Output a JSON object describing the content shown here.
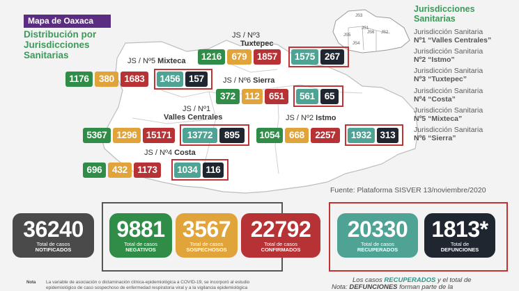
{
  "header": {
    "badge": "Mapa de Oaxaca",
    "subtitle_line1": "Distribución por",
    "subtitle_line2": "Jurisdicciones",
    "subtitle_line3": "Sanitarias"
  },
  "legend": {
    "title_line1": "Jurisdicciones",
    "title_line2": "Sanitarias",
    "inset_labels": [
      "JS3",
      "JS1",
      "JS6",
      "JS2",
      "JS5",
      "JS4"
    ],
    "items": [
      {
        "l1": "Jurisdicción Sanitaria",
        "l2": "Nº1 “Valles Centrales”"
      },
      {
        "l1": "Jurisdicción Sanitaria",
        "l2": "Nº2 “Istmo”"
      },
      {
        "l1": "Jurisdicción Sanitaria",
        "l2": "Nº3 “Tuxtepec”"
      },
      {
        "l1": "Jurisdicción Sanitaria",
        "l2": "Nº4 “Costa”"
      },
      {
        "l1": "Jurisdicción Sanitaria",
        "l2": "Nº5 “Mixteca”"
      },
      {
        "l1": "Jurisdicción Sanitaria",
        "l2": "Nº6 “Sierra”"
      }
    ]
  },
  "regions": {
    "tuxtepec": {
      "label1": "JS / Nº3",
      "label2": "Tuxtepec",
      "negativos": "1216",
      "sospechosos": "679",
      "confirmados": "1857",
      "recuperados": "1575",
      "defunciones": "267"
    },
    "mixteca": {
      "label1": "JS / Nº5",
      "label2": "Mixteca",
      "negativos": "1176",
      "sospechosos": "380",
      "confirmados": "1683",
      "recuperados": "1456",
      "defunciones": "157"
    },
    "sierra": {
      "label1": "JS / Nº6",
      "label2": "Sierra",
      "negativos": "372",
      "sospechosos": "112",
      "confirmados": "651",
      "recuperados": "561",
      "defunciones": "65"
    },
    "valles": {
      "label1": "JS / Nº1",
      "label2": "Valles Centrales",
      "negativos": "5367",
      "sospechosos": "1296",
      "confirmados": "15171",
      "recuperados": "13772",
      "defunciones": "895"
    },
    "istmo": {
      "label1": "JS / Nº2",
      "label2": "Istmo",
      "negativos": "1054",
      "sospechosos": "668",
      "confirmados": "2257",
      "recuperados": "1932",
      "defunciones": "313"
    },
    "costa": {
      "label1": "JS / Nº4",
      "label2": "Costa",
      "negativos": "696",
      "sospechosos": "432",
      "confirmados": "1173",
      "recuperados": "1034",
      "defunciones": "116"
    }
  },
  "source": "Fuente: Plataforma SISVER 13/noviembre/2020",
  "totals": {
    "notificados": {
      "value": "36240",
      "l1": "Total de casos",
      "l2": "NOTIFICADOS"
    },
    "negativos": {
      "value": "9881",
      "l1": "Total de casos",
      "l2": "NEGATIVOS"
    },
    "sospechosos": {
      "value": "3567",
      "l1": "Total de casos",
      "l2": "SOSPECHOSOS"
    },
    "confirmados": {
      "value": "22792",
      "l1": "Total de casos",
      "l2": "CONFIRMADOS"
    },
    "recuperados": {
      "value": "20330",
      "l1": "Total de casos",
      "l2": "RECUPERADOS"
    },
    "defunciones": {
      "value": "1813*",
      "l1": "Total de",
      "l2": "DEFUNCIONES"
    }
  },
  "footer": {
    "nota_label": "Nota",
    "nota_text1": "La variable de asociación o dictaminación clínica-epidemiológica a COVID-19, se incorporó al estudio",
    "nota_text2": "epidemiológico de caso sospechoso de enfermedad respiratoria viral y a la vigilancia epidemiológica",
    "right_line1": "Los casos RECUPERADOS y el total de",
    "right_prefix": "Nota:",
    "right_line2": "DEFUNCIONES forman parte de la"
  },
  "colors": {
    "negativos": "#2f8d48",
    "sospechosos": "#e0a43b",
    "confirmados": "#b63234",
    "recuperados": "#4ea394",
    "defunciones": "#1f2630",
    "notificados": "#4a4a4a",
    "badge": "#5b2d82",
    "green_text": "#3b9a59",
    "frame": "#c33135"
  }
}
